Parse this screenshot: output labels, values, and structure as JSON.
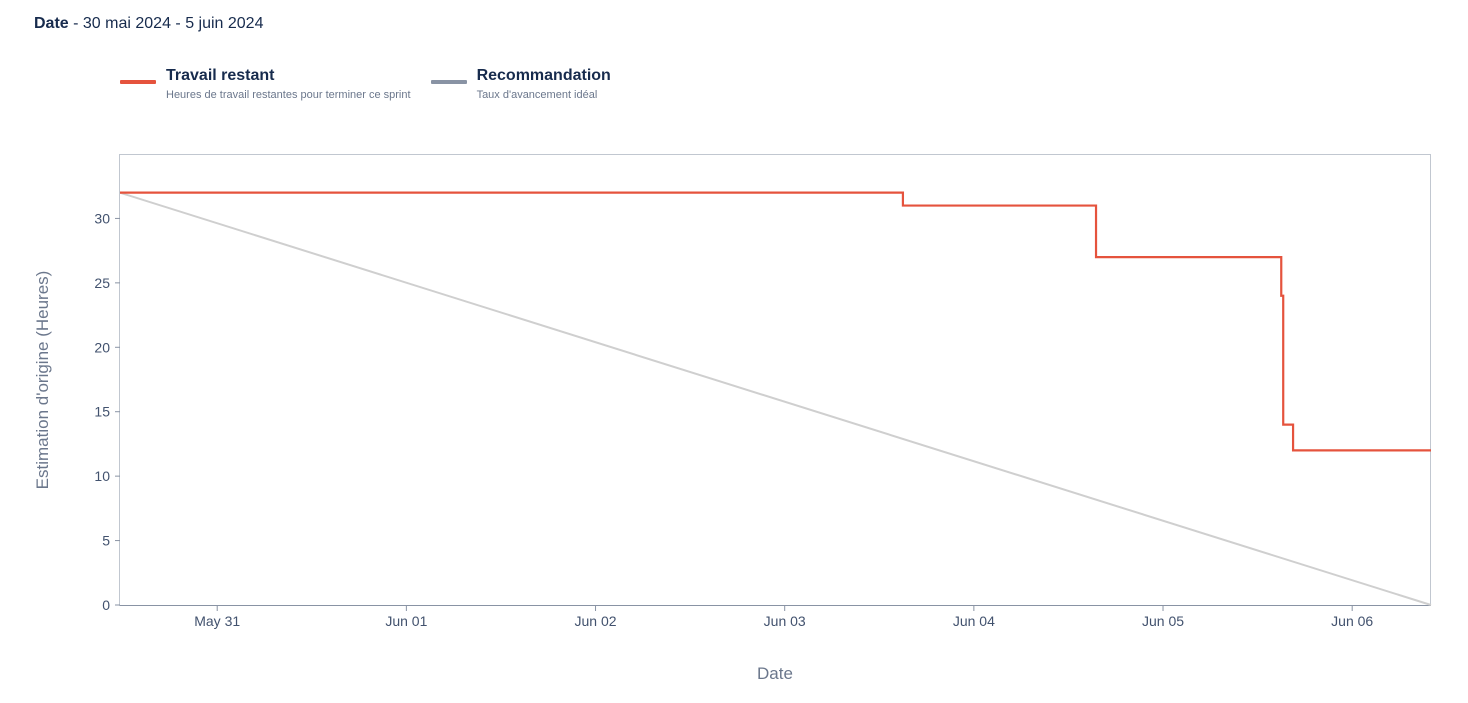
{
  "header": {
    "date_label": "Date",
    "date_range": " - 30 mai 2024 - 5 juin 2024"
  },
  "legend": [
    {
      "name": "Travail restant",
      "description": "Heures de travail restantes pour terminer ce sprint",
      "color": "#e5533d"
    },
    {
      "name": "Recommandation",
      "description": "Taux d'avancement idéal",
      "color": "#8993a4"
    }
  ],
  "chart_data": {
    "type": "line",
    "xlabel": "Date",
    "ylabel": "Estimation d'origine (Heures)",
    "xlim": [
      "2024-05-30T11:40",
      "2024-06-06T10:00"
    ],
    "ylim": [
      0,
      35
    ],
    "x_ticks": [
      {
        "t": "2024-05-31T00:00",
        "label": "May 31"
      },
      {
        "t": "2024-06-01T00:00",
        "label": "Jun 01"
      },
      {
        "t": "2024-06-02T00:00",
        "label": "Jun 02"
      },
      {
        "t": "2024-06-03T00:00",
        "label": "Jun 03"
      },
      {
        "t": "2024-06-04T00:00",
        "label": "Jun 04"
      },
      {
        "t": "2024-06-05T00:00",
        "label": "Jun 05"
      },
      {
        "t": "2024-06-06T00:00",
        "label": "Jun 06"
      }
    ],
    "y_ticks": [
      0,
      5,
      10,
      15,
      20,
      25,
      30
    ],
    "series": [
      {
        "name": "Travail restant",
        "color": "#e5533d",
        "step": true,
        "points": [
          {
            "x": "2024-05-30T11:40",
            "y": 32
          },
          {
            "x": "2024-06-03T15:00",
            "y": 31
          },
          {
            "x": "2024-06-04T15:30",
            "y": 27
          },
          {
            "x": "2024-06-05T15:00",
            "y": 24
          },
          {
            "x": "2024-06-05T15:15",
            "y": 14
          },
          {
            "x": "2024-06-05T16:30",
            "y": 12
          },
          {
            "x": "2024-06-06T10:00",
            "y": 12
          }
        ]
      },
      {
        "name": "Recommandation",
        "color": "#cfcfcf",
        "step": false,
        "points": [
          {
            "x": "2024-05-30T11:40",
            "y": 32
          },
          {
            "x": "2024-06-06T10:00",
            "y": 0
          }
        ]
      }
    ]
  }
}
